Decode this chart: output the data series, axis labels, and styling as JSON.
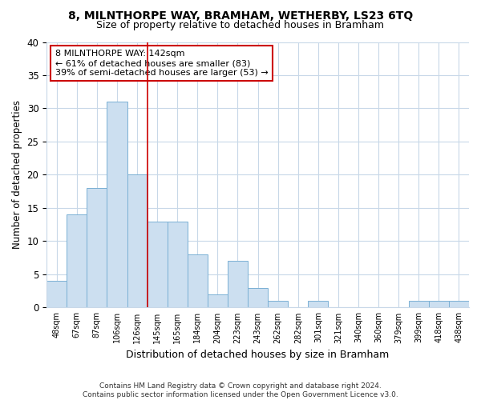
{
  "title_line1": "8, MILNTHORPE WAY, BRAMHAM, WETHERBY, LS23 6TQ",
  "title_line2": "Size of property relative to detached houses in Bramham",
  "xlabel": "Distribution of detached houses by size in Bramham",
  "ylabel": "Number of detached properties",
  "bin_labels": [
    "48sqm",
    "67sqm",
    "87sqm",
    "106sqm",
    "126sqm",
    "145sqm",
    "165sqm",
    "184sqm",
    "204sqm",
    "223sqm",
    "243sqm",
    "262sqm",
    "282sqm",
    "301sqm",
    "321sqm",
    "340sqm",
    "360sqm",
    "379sqm",
    "399sqm",
    "418sqm",
    "438sqm"
  ],
  "bar_heights": [
    4,
    14,
    18,
    31,
    20,
    13,
    13,
    8,
    2,
    7,
    3,
    1,
    0,
    1,
    0,
    0,
    0,
    0,
    1,
    1,
    1
  ],
  "bar_color": "#ccdff0",
  "bar_edge_color": "#7ab0d4",
  "vline_x_index": 4.5,
  "vline_color": "#cc0000",
  "annotation_line1": "8 MILNTHORPE WAY: 142sqm",
  "annotation_line2": "← 61% of detached houses are smaller (83)",
  "annotation_line3": "39% of semi-detached houses are larger (53) →",
  "annotation_box_color": "#ffffff",
  "annotation_box_edge_color": "#cc0000",
  "ylim": [
    0,
    40
  ],
  "yticks": [
    0,
    5,
    10,
    15,
    20,
    25,
    30,
    35,
    40
  ],
  "footer_text": "Contains HM Land Registry data © Crown copyright and database right 2024.\nContains public sector information licensed under the Open Government Licence v3.0.",
  "background_color": "#ffffff",
  "grid_color": "#c8d8e8"
}
